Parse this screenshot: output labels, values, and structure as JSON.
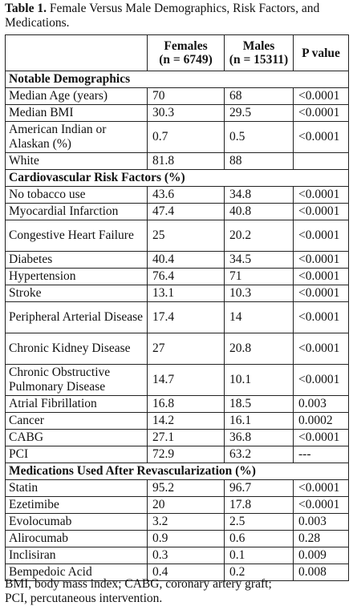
{
  "caption": {
    "label": "Table 1.",
    "text": "Female Versus Male Demographics, Risk Factors, and Medications."
  },
  "header": {
    "females_line1": "Females",
    "females_line2": "(n = 6749)",
    "males_line1": "Males",
    "males_line2": "(n = 15311)",
    "pvalue": "P value"
  },
  "sections": [
    {
      "title": "Notable Demographics",
      "rows": [
        {
          "name": "Median Age (years)",
          "females": "70",
          "males": "68",
          "p": "<0.0001",
          "tall": false
        },
        {
          "name": "Median BMI",
          "females": "30.3",
          "males": "29.5",
          "p": "<0.0001",
          "tall": false
        },
        {
          "name": "American Indian or Alaskan (%)",
          "females": "0.7",
          "males": "0.5",
          "p": "<0.0001",
          "tall": true
        },
        {
          "name": "White",
          "females": "81.8",
          "males": "88",
          "p": "",
          "tall": false
        }
      ]
    },
    {
      "title": "Cardiovascular Risk Factors (%)",
      "rows": [
        {
          "name": "No tobacco use",
          "females": "43.6",
          "males": "34.8",
          "p": "<0.0001",
          "tall": false
        },
        {
          "name": "Myocardial Infarction",
          "females": "47.4",
          "males": "40.8",
          "p": "<0.0001",
          "tall": false
        },
        {
          "name": "Congestive Heart Failure",
          "females": "25",
          "males": "20.2",
          "p": "<0.0001",
          "tall": true
        },
        {
          "name": "Diabetes",
          "females": "40.4",
          "males": "34.5",
          "p": "<0.0001",
          "tall": false
        },
        {
          "name": "Hypertension",
          "females": "76.4",
          "males": "71",
          "p": "<0.0001",
          "tall": false
        },
        {
          "name": "Stroke",
          "females": "13.1",
          "males": "10.3",
          "p": "<0.0001",
          "tall": false
        },
        {
          "name": "Peripheral Arterial Disease",
          "females": "17.4",
          "males": "14",
          "p": "<0.0001",
          "tall": true
        },
        {
          "name": "Chronic Kidney Disease",
          "females": "27",
          "males": "20.8",
          "p": "<0.0001",
          "tall": true
        },
        {
          "name": "Chronic Obstructive Pulmonary Disease",
          "females": "14.7",
          "males": "10.1",
          "p": "<0.0001",
          "tall": true
        },
        {
          "name": "Atrial Fibrillation",
          "females": "16.8",
          "males": "18.5",
          "p": "0.003",
          "tall": false
        },
        {
          "name": "Cancer",
          "females": "14.2",
          "males": "16.1",
          "p": "0.0002",
          "tall": false
        },
        {
          "name": "CABG",
          "females": "27.1",
          "males": "36.8",
          "p": "<0.0001",
          "tall": false
        },
        {
          "name": "PCI",
          "females": "72.9",
          "males": "63.2",
          "p": "---",
          "tall": false
        }
      ]
    },
    {
      "title": "Medications Used After Revascularization (%)",
      "rows": [
        {
          "name": "Statin",
          "females": "95.2",
          "males": "96.7",
          "p": "<0.0001",
          "tall": false
        },
        {
          "name": "Ezetimibe",
          "females": "20",
          "males": "17.8",
          "p": "<0.0001",
          "tall": false
        },
        {
          "name": "Evolocumab",
          "females": "3.2",
          "males": "2.5",
          "p": "0.003",
          "tall": false
        },
        {
          "name": "Alirocumab",
          "females": "0.9",
          "males": "0.6",
          "p": "0.28",
          "tall": false
        },
        {
          "name": "Inclisiran",
          "females": "0.3",
          "males": "0.1",
          "p": "0.009",
          "tall": false
        },
        {
          "name": "Bempedoic Acid",
          "females": "0.4",
          "males": "0.2",
          "p": "0.008",
          "tall": false
        }
      ]
    }
  ],
  "footnote": {
    "line1": "BMI, body mass index; CABG, coronary artery graft;",
    "line2": "PCI, percutaneous intervention."
  }
}
